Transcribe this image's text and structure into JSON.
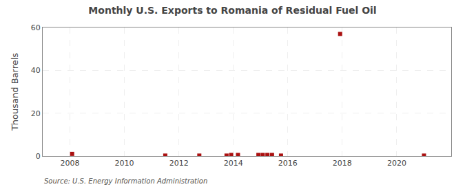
{
  "chart_data": {
    "type": "scatter",
    "title": "Monthly U.S. Exports to Romania of Residual Fuel Oil",
    "ylabel": "Thousand Barrels",
    "annotations": [
      "Source: U.S. Energy Information Administration"
    ],
    "x": [
      2008.08,
      2011.5,
      2012.75,
      2013.75,
      2013.92,
      2014.17,
      2014.92,
      2015.08,
      2015.25,
      2015.42,
      2015.75,
      2017.92,
      2021.0
    ],
    "values": [
      1.0,
      0.2,
      0.2,
      0.2,
      0.5,
      0.5,
      0.5,
      0.5,
      0.5,
      0.5,
      0.2,
      57.0,
      0.2
    ],
    "color": "#aa1111",
    "marker": "square",
    "xlim": [
      2007.0,
      2022.0
    ],
    "ylim": [
      0,
      60
    ],
    "xticks": [
      2008,
      2010,
      2012,
      2014,
      2016,
      2018,
      2020
    ],
    "yticks": [
      0,
      20,
      40,
      60
    ],
    "grid": true
  }
}
